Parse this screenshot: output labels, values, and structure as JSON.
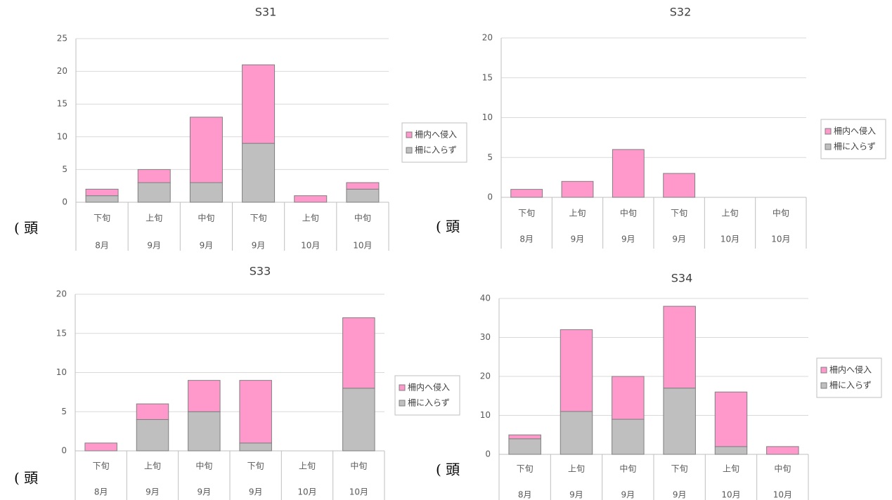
{
  "chart_data": [
    {
      "type": "bar",
      "stacked": true,
      "title": "S31",
      "y_label": "( 頭",
      "categories": [
        "下旬",
        "上旬",
        "中旬",
        "下旬",
        "上旬",
        "中旬"
      ],
      "category_groups": [
        "8月",
        "9月",
        "9月",
        "9月",
        "10月",
        "10月"
      ],
      "series": [
        {
          "name": "柵に入らず",
          "color": "#bfbfbf",
          "values": [
            1,
            3,
            3,
            9,
            0,
            2
          ]
        },
        {
          "name": "柵内へ侵入",
          "color": "#ff99cc",
          "values": [
            1,
            2,
            10,
            12,
            1,
            1
          ]
        }
      ],
      "ylim": [
        0,
        25
      ],
      "yticks": [
        0,
        5,
        10,
        15,
        20,
        25
      ],
      "grid": true,
      "legend": "right"
    },
    {
      "type": "bar",
      "stacked": true,
      "title": "S32",
      "y_label": "( 頭",
      "categories": [
        "下旬",
        "上旬",
        "中旬",
        "下旬",
        "上旬",
        "中旬"
      ],
      "category_groups": [
        "8月",
        "9月",
        "9月",
        "9月",
        "10月",
        "10月"
      ],
      "series": [
        {
          "name": "柵に入らず",
          "color": "#bfbfbf",
          "values": [
            0,
            0,
            0,
            0,
            0,
            0
          ]
        },
        {
          "name": "柵内へ侵入",
          "color": "#ff99cc",
          "values": [
            1,
            2,
            6,
            3,
            0,
            0
          ]
        }
      ],
      "ylim": [
        0,
        20
      ],
      "yticks": [
        0,
        5,
        10,
        15,
        20
      ],
      "grid": true,
      "legend": "right"
    },
    {
      "type": "bar",
      "stacked": true,
      "title": "S33",
      "y_label": "( 頭",
      "categories": [
        "下旬",
        "上旬",
        "中旬",
        "下旬",
        "上旬",
        "中旬"
      ],
      "category_groups": [
        "8月",
        "9月",
        "9月",
        "9月",
        "10月",
        "10月"
      ],
      "series": [
        {
          "name": "柵に入らず",
          "color": "#bfbfbf",
          "values": [
            0,
            4,
            5,
            1,
            0,
            8
          ]
        },
        {
          "name": "柵内へ侵入",
          "color": "#ff99cc",
          "values": [
            1,
            2,
            4,
            8,
            0,
            9
          ]
        }
      ],
      "ylim": [
        0,
        20
      ],
      "yticks": [
        0,
        5,
        10,
        15,
        20
      ],
      "grid": true,
      "legend": "right"
    },
    {
      "type": "bar",
      "stacked": true,
      "title": "S34",
      "y_label": "( 頭",
      "categories": [
        "下旬",
        "上旬",
        "中旬",
        "下旬",
        "上旬",
        "中旬"
      ],
      "category_groups": [
        "8月",
        "9月",
        "9月",
        "9月",
        "10月",
        "10月"
      ],
      "series": [
        {
          "name": "柵に入らず",
          "color": "#bfbfbf",
          "values": [
            4,
            11,
            9,
            17,
            2,
            0
          ]
        },
        {
          "name": "柵内へ侵入",
          "color": "#ff99cc",
          "values": [
            1,
            21,
            11,
            21,
            14,
            2
          ]
        }
      ],
      "ylim": [
        0,
        40
      ],
      "yticks": [
        0,
        10,
        20,
        30,
        40
      ],
      "grid": true,
      "legend": "right"
    }
  ]
}
